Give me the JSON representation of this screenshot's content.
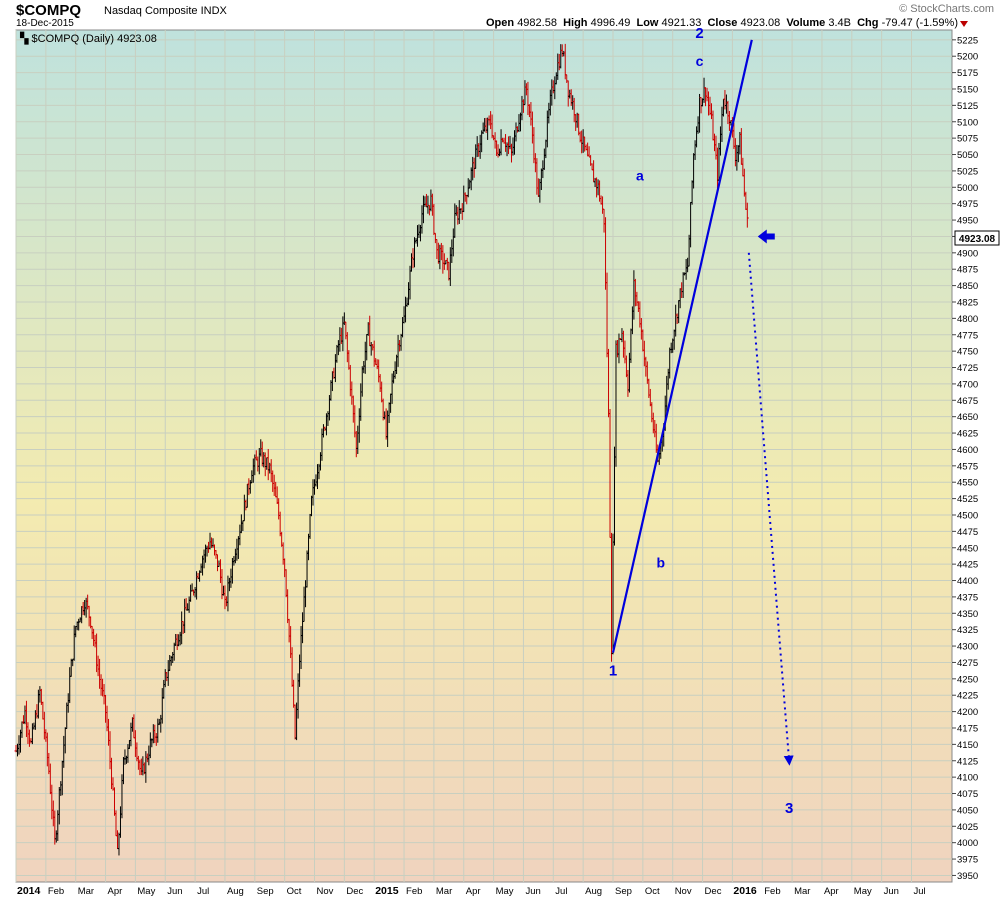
{
  "header": {
    "symbol": "$COMPQ",
    "name": "Nasdaq Composite INDX",
    "date": "18-Dec-2015",
    "brand": "© StockCharts.com",
    "open_label": "Open",
    "open": "4982.58",
    "high_label": "High",
    "high": "4996.49",
    "low_label": "Low",
    "low": "4921.33",
    "close_label": "Close",
    "close": "4923.08",
    "volume_label": "Volume",
    "volume": "3.4B",
    "chg_label": "Chg",
    "chg": "-79.47 (-1.59%)"
  },
  "colors": {
    "up": "#000000",
    "down": "#cc0000",
    "annotation": "#0000dd",
    "grid": "#c8cfc0"
  },
  "chart_data": {
    "type": "ohlc",
    "title": "$COMPQ (Daily) 4923.08",
    "current_value_label": "4923.08",
    "ylim": [
      3940,
      5240
    ],
    "y_ticks": [
      3950,
      3975,
      4000,
      4025,
      4050,
      4075,
      4100,
      4125,
      4150,
      4175,
      4200,
      4225,
      4250,
      4275,
      4300,
      4325,
      4350,
      4375,
      4400,
      4425,
      4450,
      4475,
      4500,
      4525,
      4550,
      4575,
      4600,
      4625,
      4650,
      4675,
      4700,
      4725,
      4750,
      4775,
      4800,
      4825,
      4850,
      4875,
      4900,
      4925,
      4950,
      4975,
      5000,
      5025,
      5050,
      5075,
      5100,
      5125,
      5150,
      5175,
      5200,
      5225
    ],
    "x_months": [
      {
        "label": "2014",
        "t": 0,
        "bold": true
      },
      {
        "label": "Feb",
        "t": 1
      },
      {
        "label": "Mar",
        "t": 2
      },
      {
        "label": "Apr",
        "t": 3
      },
      {
        "label": "May",
        "t": 4
      },
      {
        "label": "Jun",
        "t": 5
      },
      {
        "label": "Jul",
        "t": 6
      },
      {
        "label": "Aug",
        "t": 7
      },
      {
        "label": "Sep",
        "t": 8
      },
      {
        "label": "Oct",
        "t": 9
      },
      {
        "label": "Nov",
        "t": 10
      },
      {
        "label": "Dec",
        "t": 11
      },
      {
        "label": "2015",
        "t": 12,
        "bold": true
      },
      {
        "label": "Feb",
        "t": 13
      },
      {
        "label": "Mar",
        "t": 14
      },
      {
        "label": "Apr",
        "t": 15
      },
      {
        "label": "May",
        "t": 16
      },
      {
        "label": "Jun",
        "t": 17
      },
      {
        "label": "Jul",
        "t": 18
      },
      {
        "label": "Aug",
        "t": 19
      },
      {
        "label": "Sep",
        "t": 20
      },
      {
        "label": "Oct",
        "t": 21
      },
      {
        "label": "Nov",
        "t": 22
      },
      {
        "label": "Dec",
        "t": 23
      },
      {
        "label": "2016",
        "t": 24,
        "bold": true
      },
      {
        "label": "Feb",
        "t": 25
      },
      {
        "label": "Mar",
        "t": 26
      },
      {
        "label": "Apr",
        "t": 27
      },
      {
        "label": "May",
        "t": 28
      },
      {
        "label": "Jun",
        "t": 29
      },
      {
        "label": "Jul",
        "t": 30
      }
    ],
    "x_range": [
      0,
      31
    ],
    "series": [
      {
        "name": "$COMPQ daily close (approx.)",
        "points": [
          [
            0.0,
            4140
          ],
          [
            0.3,
            4200
          ],
          [
            0.5,
            4150
          ],
          [
            0.8,
            4230
          ],
          [
            1.1,
            4110
          ],
          [
            1.3,
            4000
          ],
          [
            1.5,
            4100
          ],
          [
            1.8,
            4250
          ],
          [
            2.0,
            4330
          ],
          [
            2.3,
            4370
          ],
          [
            2.5,
            4340
          ],
          [
            2.8,
            4250
          ],
          [
            3.0,
            4200
          ],
          [
            3.2,
            4100
          ],
          [
            3.4,
            3980
          ],
          [
            3.6,
            4120
          ],
          [
            3.9,
            4180
          ],
          [
            4.2,
            4100
          ],
          [
            4.5,
            4150
          ],
          [
            4.8,
            4180
          ],
          [
            5.0,
            4250
          ],
          [
            5.3,
            4300
          ],
          [
            5.6,
            4340
          ],
          [
            5.9,
            4380
          ],
          [
            6.2,
            4430
          ],
          [
            6.5,
            4460
          ],
          [
            6.8,
            4420
          ],
          [
            7.0,
            4360
          ],
          [
            7.3,
            4440
          ],
          [
            7.6,
            4500
          ],
          [
            7.9,
            4570
          ],
          [
            8.2,
            4590
          ],
          [
            8.5,
            4570
          ],
          [
            8.8,
            4500
          ],
          [
            9.0,
            4420
          ],
          [
            9.2,
            4280
          ],
          [
            9.35,
            4160
          ],
          [
            9.5,
            4280
          ],
          [
            9.7,
            4400
          ],
          [
            9.9,
            4520
          ],
          [
            10.2,
            4600
          ],
          [
            10.5,
            4680
          ],
          [
            10.8,
            4760
          ],
          [
            11.0,
            4790
          ],
          [
            11.2,
            4700
          ],
          [
            11.4,
            4600
          ],
          [
            11.6,
            4720
          ],
          [
            11.8,
            4780
          ],
          [
            12.0,
            4740
          ],
          [
            12.2,
            4700
          ],
          [
            12.4,
            4620
          ],
          [
            12.6,
            4700
          ],
          [
            12.8,
            4760
          ],
          [
            13.0,
            4800
          ],
          [
            13.3,
            4900
          ],
          [
            13.6,
            4960
          ],
          [
            13.9,
            4980
          ],
          [
            14.1,
            4900
          ],
          [
            14.3,
            4890
          ],
          [
            14.5,
            4870
          ],
          [
            14.7,
            4950
          ],
          [
            15.0,
            4980
          ],
          [
            15.3,
            5030
          ],
          [
            15.6,
            5080
          ],
          [
            15.9,
            5100
          ],
          [
            16.1,
            5050
          ],
          [
            16.3,
            5080
          ],
          [
            16.6,
            5050
          ],
          [
            16.9,
            5120
          ],
          [
            17.1,
            5150
          ],
          [
            17.3,
            5080
          ],
          [
            17.5,
            4980
          ],
          [
            17.7,
            5060
          ],
          [
            17.9,
            5130
          ],
          [
            18.1,
            5180
          ],
          [
            18.3,
            5210
          ],
          [
            18.5,
            5150
          ],
          [
            18.7,
            5120
          ],
          [
            18.9,
            5080
          ],
          [
            19.1,
            5050
          ],
          [
            19.3,
            5020
          ],
          [
            19.5,
            5000
          ],
          [
            19.7,
            4950
          ],
          [
            19.85,
            4650
          ],
          [
            19.95,
            4300
          ],
          [
            20.1,
            4750
          ],
          [
            20.3,
            4780
          ],
          [
            20.5,
            4700
          ],
          [
            20.7,
            4850
          ],
          [
            20.9,
            4800
          ],
          [
            21.1,
            4720
          ],
          [
            21.3,
            4650
          ],
          [
            21.5,
            4580
          ],
          [
            21.7,
            4640
          ],
          [
            21.9,
            4750
          ],
          [
            22.1,
            4800
          ],
          [
            22.3,
            4850
          ],
          [
            22.5,
            4880
          ],
          [
            22.7,
            5050
          ],
          [
            22.9,
            5130
          ],
          [
            23.1,
            5150
          ],
          [
            23.3,
            5100
          ],
          [
            23.5,
            5020
          ],
          [
            23.7,
            5140
          ],
          [
            23.9,
            5110
          ],
          [
            24.1,
            5050
          ],
          [
            24.25,
            5070
          ],
          [
            24.4,
            4990
          ],
          [
            24.55,
            4923
          ]
        ]
      }
    ],
    "annotations": [
      {
        "label": "1",
        "t": 20.0,
        "v": 4255
      },
      {
        "label": "2",
        "t": 22.9,
        "v": 5228
      },
      {
        "label": "3",
        "t": 25.9,
        "v": 4045
      },
      {
        "label": "a",
        "t": 20.9,
        "v": 5010
      },
      {
        "label": "b",
        "t": 21.6,
        "v": 4420
      },
      {
        "label": "c",
        "t": 22.9,
        "v": 5185
      }
    ],
    "trendline": {
      "from": [
        20.0,
        4290
      ],
      "to": [
        24.65,
        5225
      ]
    },
    "projection": {
      "from": [
        24.55,
        4900
      ],
      "to": [
        25.9,
        4125
      ]
    },
    "marker": {
      "t": 24.85,
      "v": 4925
    }
  }
}
